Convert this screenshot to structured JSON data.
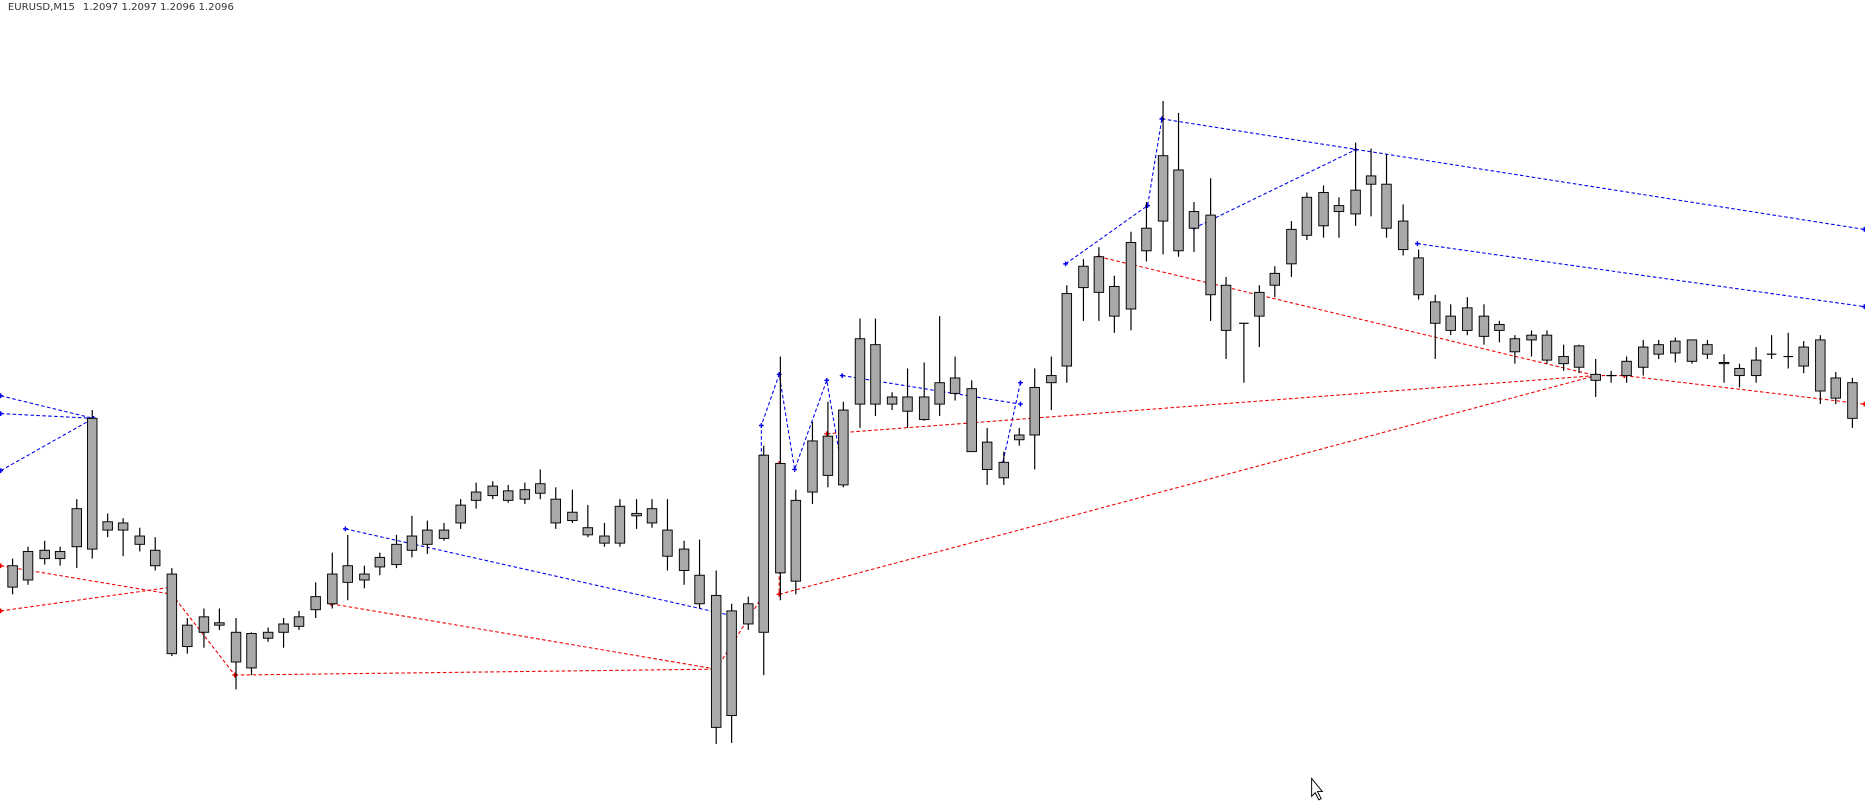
{
  "header": {
    "symbol": "EURUSD,M15",
    "open": 1.2097,
    "high": 1.2097,
    "low": 1.2096,
    "close": 1.2096
  }
}
